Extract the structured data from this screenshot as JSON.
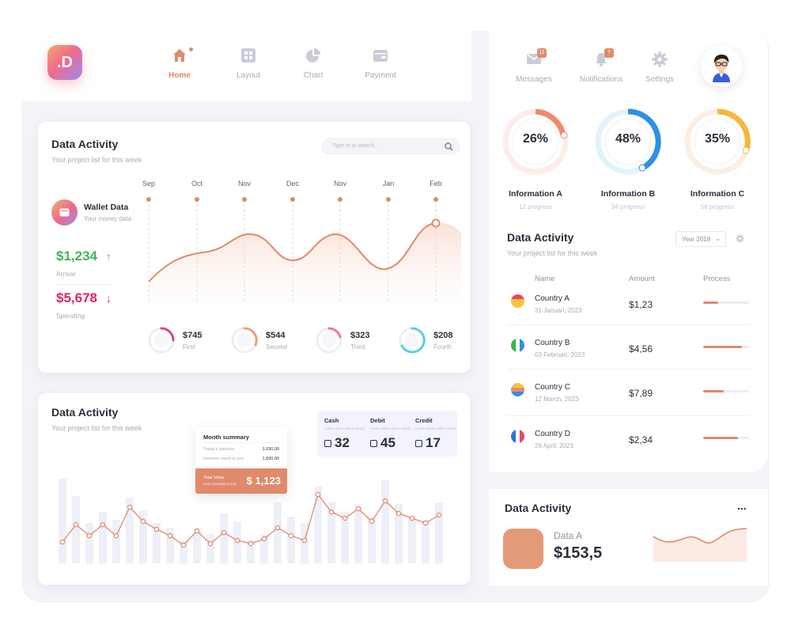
{
  "nav": {
    "logo": ".D",
    "items": [
      {
        "label": "Home",
        "icon": "home-icon",
        "active": true
      },
      {
        "label": "Layout",
        "icon": "layout-icon",
        "active": false
      },
      {
        "label": "Chart",
        "icon": "pie-chart-icon",
        "active": false
      },
      {
        "label": "Payment",
        "icon": "wallet-icon",
        "active": false
      }
    ]
  },
  "right_header": {
    "messages": {
      "label": "Messages",
      "badge": "11"
    },
    "notifications": {
      "label": "Notifications",
      "badge": "7"
    },
    "settings": {
      "label": "Settings"
    }
  },
  "info_donuts": [
    {
      "pct_label": "26%",
      "pct": 26,
      "name": "Information A",
      "sub": "12 progress",
      "color": "#f08a6a"
    },
    {
      "pct_label": "48%",
      "pct": 48,
      "name": "Information B",
      "sub": "34 progress",
      "color": "#2f8fe8"
    },
    {
      "pct_label": "35%",
      "pct": 35,
      "name": "Information C",
      "sub": "56 progress",
      "color": "#f6b73c"
    }
  ],
  "country_table": {
    "title": "Data Activity",
    "subtitle": "Your project list for this week",
    "year_select": "Year 2018",
    "headers": {
      "name": "Name",
      "amount": "Amount",
      "process": "Process"
    },
    "rows": [
      {
        "name": "Country A",
        "date": "31 Januari, 2023",
        "amount": "$1,23",
        "progress": 0.33
      },
      {
        "name": "Country B",
        "date": "03 Februari, 2023",
        "amount": "$4,56",
        "progress": 0.85
      },
      {
        "name": "Country C",
        "date": "12 March, 2023",
        "amount": "$7,89",
        "progress": 0.45
      },
      {
        "name": "Country D",
        "date": "28 April, 2023",
        "amount": "$2,34",
        "progress": 0.75
      }
    ]
  },
  "activity_card": {
    "title": "Data Activity",
    "subtitle": "Your project list for this week",
    "search_placeholder": "Type in to search...",
    "wallet": {
      "title": "Wallet Data",
      "sub": "Your money data"
    },
    "arrival": {
      "value": "$1,234",
      "arrow": "↑",
      "label": "Arrival",
      "color": "#41b25a"
    },
    "spending": {
      "value": "$5,678",
      "arrow": "↓",
      "label": "Spending",
      "color": "#e0245e"
    },
    "months": [
      "Sep",
      "Oct",
      "Nov",
      "Dec",
      "Nov",
      "Jan",
      "Feb"
    ],
    "mini_stats": [
      {
        "value": "$745",
        "label": "First",
        "color": "#e0486b",
        "pct": 0.25
      },
      {
        "value": "$544",
        "label": "Second",
        "color": "#f2a06f",
        "pct": 0.3
      },
      {
        "value": "$323",
        "label": "Third",
        "color": "#f07a8a",
        "pct": 0.2
      },
      {
        "value": "$208",
        "label": "Fourth",
        "color": "#5ad0e0",
        "pct": 0.6
      }
    ]
  },
  "bar_card": {
    "title": "Data Activity",
    "subtitle": "Your project list for this week",
    "summary": {
      "title": "Month summary",
      "rows": [
        {
          "label": "Today's balance",
          "value": "1,030,00"
        },
        {
          "label": "Invoices owed to you",
          "value": "1,500,00"
        }
      ],
      "total_label": "Total Value",
      "total_sub": "Data recorded month",
      "total_value": "$ 1,123"
    },
    "stats": [
      {
        "label": "Cash",
        "sub": "Lorem ipsum dolor simply",
        "value": "32"
      },
      {
        "label": "Debit",
        "sub": "Lorem ipsum dolor simply",
        "value": "45"
      },
      {
        "label": "Credit",
        "sub": "Lorem ipsum dolor simply",
        "value": "17"
      }
    ]
  },
  "small_card": {
    "title": "Data Activity",
    "menu": "...",
    "label": "Data A",
    "value": "$153,5"
  }
}
